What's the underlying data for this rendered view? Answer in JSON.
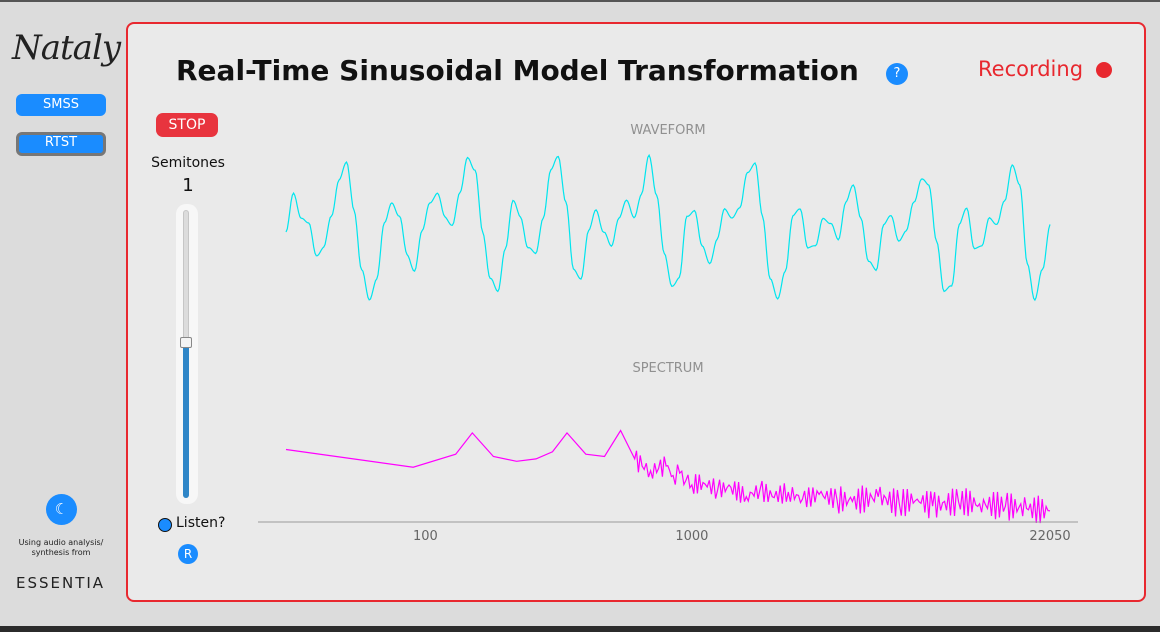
{
  "sidebar": {
    "logo": "Nataly",
    "nav": [
      {
        "label": "SMSS",
        "active": false
      },
      {
        "label": "RTST",
        "active": true
      }
    ],
    "theme_icon": "☾",
    "credit": "Using audio analysis/ synthesis from",
    "brand": "ESSENTIA"
  },
  "header": {
    "title": "Real-Time Sinusoidal Model Transformation",
    "help_label": "?",
    "recording_label": "Recording"
  },
  "controls": {
    "stop_label": "STOP",
    "semitones_label": "Semitones",
    "semitones_value": "1",
    "slider_fraction": 0.54,
    "listen_label": "Listen?",
    "r_label": "R"
  },
  "colors": {
    "accent": "#1a8cff",
    "record": "#e8282f",
    "waveform": "#00e5ee",
    "spectrum": "#ff00ff"
  },
  "chart_data": [
    {
      "type": "line",
      "title": "WAVEFORM",
      "xlabel": "",
      "ylabel": "",
      "grid": false,
      "series": [
        {
          "y": [
            0.0,
            0.5,
            0.2,
            0.1,
            -0.3,
            -0.2,
            0.2,
            0.7,
            0.9,
            0.3,
            -0.5,
            -0.9,
            -0.6,
            0.1,
            0.4,
            0.2,
            -0.3,
            -0.5,
            0.0,
            0.4,
            0.5,
            0.2,
            0.1,
            0.5,
            1.0,
            0.8,
            0.0,
            -0.6,
            -0.8,
            -0.2,
            0.4,
            0.2,
            -0.2,
            -0.3,
            0.2,
            0.8,
            1.0,
            0.4,
            -0.5,
            -0.6,
            0.0,
            0.3,
            0.0,
            -0.2,
            0.2,
            0.4,
            0.2,
            0.5,
            1.0,
            0.5,
            -0.3,
            -0.7,
            -0.6,
            0.2,
            0.3,
            -0.2,
            -0.4,
            -0.1,
            0.3,
            0.2,
            0.3,
            0.8,
            0.9,
            0.2,
            -0.6,
            -0.9,
            -0.5,
            0.2,
            0.3,
            -0.2,
            -0.2,
            0.2,
            0.1,
            -0.1,
            0.4,
            0.6,
            0.2,
            -0.4,
            -0.5,
            0.1,
            0.2,
            -0.1,
            0.0,
            0.4,
            0.7,
            0.6,
            -0.1,
            -0.8,
            -0.7,
            0.1,
            0.3,
            -0.2,
            -0.2,
            0.2,
            0.1,
            0.4,
            0.9,
            0.6,
            -0.4,
            -0.9,
            -0.5,
            0.1
          ]
        }
      ],
      "ylim": [
        -1,
        1
      ]
    },
    {
      "type": "line",
      "title": "SPECTRUM",
      "xlabel": "",
      "ylabel": "",
      "x_scale": "log",
      "xlim": [
        30,
        22050
      ],
      "xticks": [
        100,
        1000,
        22050
      ],
      "xtick_labels": [
        "100",
        "1000",
        "22050"
      ],
      "grid": false,
      "series": [
        {
          "x": [
            30,
            90,
            130,
            150,
            180,
            220,
            260,
            300,
            340,
            400,
            470,
            540,
            610,
            650,
            700,
            750,
            800,
            850,
            900,
            950,
            1000,
            1100,
            1250,
            1400,
            1600,
            1800,
            2000,
            2300,
            2600,
            3000,
            3500,
            4000,
            5000,
            6000,
            7000,
            8000,
            10000,
            12000,
            15000,
            18000,
            22050
          ],
          "y": [
            -30,
            -45,
            -34,
            -16,
            -36,
            -40,
            -38,
            -32,
            -16,
            -34,
            -36,
            -14,
            -38,
            -44,
            -48,
            -46,
            -44,
            -52,
            -50,
            -56,
            -60,
            -58,
            -64,
            -62,
            -70,
            -64,
            -70,
            -66,
            -72,
            -68,
            -72,
            -74,
            -70,
            -76,
            -72,
            -78,
            -74,
            -76,
            -78,
            -80,
            -82
          ]
        }
      ],
      "ylim": [
        -110,
        0
      ]
    }
  ]
}
